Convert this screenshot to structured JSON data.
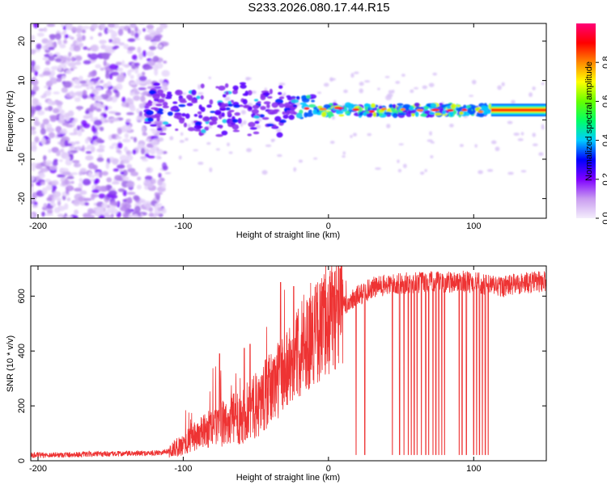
{
  "title": "S233.2026.080.17.44.R15",
  "colorbar_label": "Normalized spectral amplitude",
  "chart_data": [
    {
      "type": "heatmap",
      "title": "S233.2026.080.17.44.R15",
      "xlabel": "Height of straight line (km)",
      "ylabel": "Frequency (Hz)",
      "xlim": [
        -205,
        150
      ],
      "ylim": [
        -25,
        24.5
      ],
      "xticks": [
        -200,
        -100,
        0,
        100
      ],
      "yticks": [
        -20,
        -10,
        0,
        10,
        20
      ],
      "colorbar": {
        "label": "Normalized spectral amplitude",
        "range": [
          0,
          1
        ],
        "ticks": [
          0.0,
          0.2,
          0.4,
          0.6,
          0.8
        ],
        "stops": [
          "#f4eefc",
          "#c99cf0",
          "#7f00ff",
          "#0000ff",
          "#00ccff",
          "#00ff66",
          "#66ff00",
          "#ffff00",
          "#ff8800",
          "#ff0000",
          "#ff0077"
        ]
      },
      "features": {
        "noise_region_x": [
          -205,
          -112
        ],
        "signal_line_x": [
          -125,
          150
        ],
        "signal_frequency_hz": 2.5,
        "strong_signal_x": [
          112,
          150
        ]
      }
    },
    {
      "type": "line",
      "xlabel": "Height of straight line (km)",
      "ylabel": "SNR (10 * v/v)",
      "xlim": [
        -205,
        150
      ],
      "ylim": [
        0,
        710
      ],
      "xticks": [
        -200,
        -100,
        0,
        100
      ],
      "yticks": [
        0,
        200,
        400,
        600
      ],
      "series": [
        {
          "name": "SNR",
          "color": "#ee3333",
          "x": [
            -205,
            -180,
            -150,
            -120,
            -110,
            -100,
            -90,
            -80,
            -70,
            -60,
            -50,
            -40,
            -30,
            -20,
            -10,
            0,
            10,
            20,
            30,
            40,
            50,
            60,
            70,
            80,
            90,
            100,
            110,
            120,
            130,
            140,
            150
          ],
          "y": [
            20,
            22,
            25,
            28,
            35,
            60,
            95,
            120,
            140,
            165,
            200,
            260,
            330,
            400,
            460,
            510,
            560,
            600,
            630,
            640,
            645,
            650,
            650,
            650,
            655,
            650,
            640,
            635,
            645,
            650,
            655
          ],
          "dropouts_x": [
            19,
            25,
            44,
            49,
            52,
            55,
            57,
            59,
            61,
            64,
            67,
            69,
            72,
            74,
            76,
            78,
            80,
            90,
            92,
            95,
            100,
            102,
            104,
            106,
            108,
            110
          ],
          "dropout_floor": 22,
          "spikes": [
            [
              -33,
              650
            ],
            [
              -24,
              635
            ],
            [
              8,
              700
            ],
            [
              -54,
              425
            ],
            [
              -75,
              390
            ],
            [
              -58,
              410
            ]
          ]
        }
      ]
    }
  ]
}
